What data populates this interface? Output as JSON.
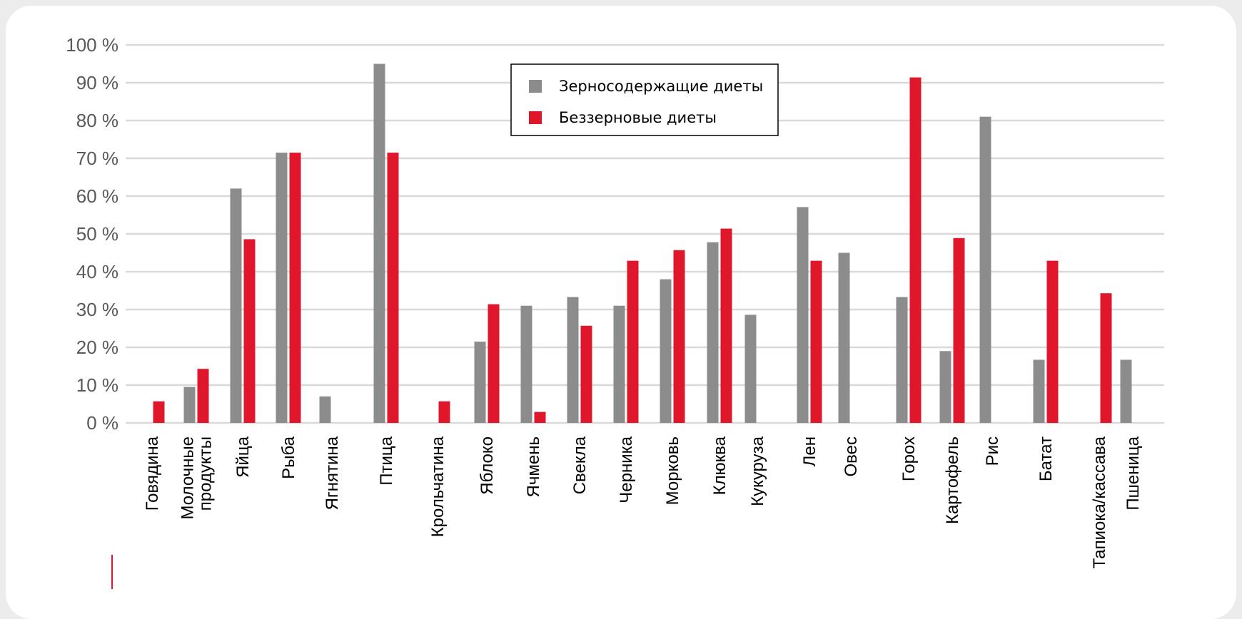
{
  "chart_data": {
    "type": "bar",
    "categories": [
      "Говядина",
      "Молочные\nпродукты",
      "Яйца",
      "Рыба",
      "Ягнятина",
      "Птица",
      "Крольчатина",
      "Яблоко",
      "Ячмень",
      "Свекла",
      "Черника",
      "Морковь",
      "Клюква",
      "Кукуруза",
      "Лен",
      "Овес",
      "Горох",
      "Картофель",
      "Рис",
      "Батат",
      "Тапиока/кассава",
      "Пшеница"
    ],
    "series": [
      {
        "name": "Зерносодержащие диеты",
        "color": "#8c8c8c",
        "values": [
          0,
          9.5,
          62,
          71.5,
          7,
          95,
          0,
          21.5,
          31,
          33.3,
          31,
          38,
          47.8,
          28.6,
          57.1,
          45,
          33.3,
          19,
          81,
          16.7,
          0,
          16.7
        ]
      },
      {
        "name": "Беззерновые диеты",
        "color": "#e0172b",
        "values": [
          5.7,
          14.3,
          48.6,
          71.5,
          0,
          71.5,
          5.7,
          31.4,
          2.9,
          25.7,
          42.9,
          45.7,
          51.4,
          0,
          42.9,
          0,
          91.4,
          48.9,
          0,
          42.9,
          34.3,
          0
        ]
      }
    ],
    "yticks": [
      "0 %",
      "10 %",
      "20 %",
      "30 %",
      "40 %",
      "50 %",
      "60 %",
      "70 %",
      "80 %",
      "90 %",
      "100 %"
    ],
    "ylim": [
      0,
      100
    ],
    "grid": true,
    "legend_position": "top-center",
    "accent_line_color": "#e0172b",
    "gridline_color": "#d9d9d9"
  }
}
